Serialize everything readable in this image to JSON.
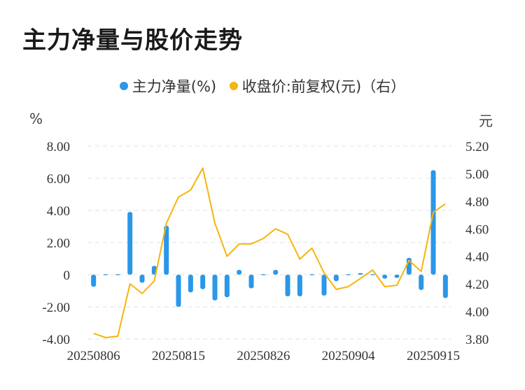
{
  "title": "主力净量与股价走势",
  "colors": {
    "bar": "#2b97e8",
    "line": "#f5b50d",
    "grid": "#e2e2e2"
  },
  "chart_data": {
    "type": "bar+line",
    "legend": [
      {
        "label": "主力净量(%)",
        "color": "#2b97e8"
      },
      {
        "label": "收盘价:前复权(元)（右）",
        "color": "#f5b50d"
      }
    ],
    "left_axis": {
      "unit": "%",
      "min": -4,
      "max": 8,
      "ticks": [
        "8.00",
        "6.00",
        "4.00",
        "2.00",
        "0",
        "-2.00",
        "-4.00"
      ],
      "tick_values": [
        8,
        6,
        4,
        2,
        0,
        -2,
        -4
      ]
    },
    "right_axis": {
      "unit": "元",
      "min": 3.8,
      "max": 5.2,
      "ticks": [
        "5.20",
        "5.00",
        "4.80",
        "4.60",
        "4.40",
        "4.20",
        "4.00",
        "3.80"
      ],
      "tick_values": [
        5.2,
        5.0,
        4.8,
        4.6,
        4.4,
        4.2,
        4.0,
        3.8
      ]
    },
    "x_tick_labels": [
      {
        "label": "20250806",
        "index": 0
      },
      {
        "label": "20250815",
        "index": 7
      },
      {
        "label": "20250826",
        "index": 14
      },
      {
        "label": "20250904",
        "index": 21
      },
      {
        "label": "20250915",
        "index": 28
      }
    ],
    "series": [
      {
        "name": "主力净量(%)",
        "type": "bar",
        "values": [
          -0.75,
          0.0,
          0.0,
          3.9,
          -0.5,
          0.55,
          3.05,
          -2.0,
          -1.1,
          -0.9,
          -1.6,
          -1.4,
          0.3,
          -0.85,
          -0.05,
          0.3,
          -1.35,
          -1.35,
          0.05,
          -1.3,
          -0.4,
          0.05,
          0.1,
          0.0,
          -0.25,
          -0.2,
          1.05,
          -0.95,
          6.5,
          -1.45
        ]
      },
      {
        "name": "收盘价:前复权(元)（右）",
        "type": "line",
        "values": [
          3.84,
          3.81,
          3.82,
          4.2,
          4.13,
          4.22,
          4.64,
          4.83,
          4.88,
          5.04,
          4.64,
          4.4,
          4.49,
          4.49,
          4.53,
          4.6,
          4.56,
          4.38,
          4.46,
          4.28,
          4.16,
          4.18,
          4.24,
          4.3,
          4.18,
          4.19,
          4.37,
          4.29,
          4.72,
          4.78
        ]
      }
    ]
  }
}
